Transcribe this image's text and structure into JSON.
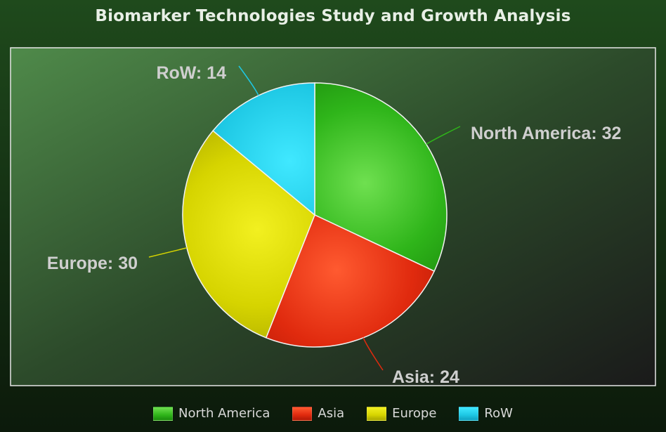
{
  "chart_data": {
    "type": "pie",
    "title": "Biomarker Technologies Study and Growth Analysis",
    "slices": [
      {
        "label": "North America",
        "value": 32,
        "color": "#2fb51a",
        "light": "#6fe050",
        "dark": "#1a8a0c",
        "display": "North America: 32"
      },
      {
        "label": "Asia",
        "value": 24,
        "color": "#e02a0e",
        "light": "#ff5a30",
        "dark": "#b01806",
        "display": "Asia: 24"
      },
      {
        "label": "Europe",
        "value": 30,
        "color": "#d6d400",
        "light": "#f2f020",
        "dark": "#a8a600",
        "display": "Europe: 30"
      },
      {
        "label": "RoW",
        "value": 14,
        "color": "#1ec8e4",
        "light": "#40e8ff",
        "dark": "#10a0c0",
        "display": "RoW: 14"
      }
    ],
    "legend_position": "bottom"
  }
}
